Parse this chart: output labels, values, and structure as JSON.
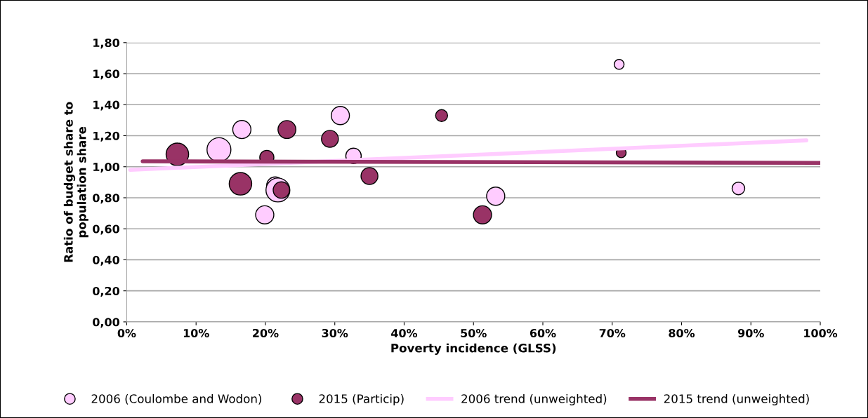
{
  "chart_data": {
    "type": "bubble",
    "xlabel": "Poverty incidence (GLSS)",
    "ylabel": "Ratio of budget share to\npopulation share",
    "xlim": [
      0,
      100
    ],
    "xticks": [
      {
        "value": 0,
        "label": "0%"
      },
      {
        "value": 10,
        "label": "10%"
      },
      {
        "value": 20,
        "label": "20%"
      },
      {
        "value": 30,
        "label": "30%"
      },
      {
        "value": 40,
        "label": "40%"
      },
      {
        "value": 50,
        "label": "50%"
      },
      {
        "value": 60,
        "label": "60%"
      },
      {
        "value": 70,
        "label": "70%"
      },
      {
        "value": 80,
        "label": "80%"
      },
      {
        "value": 90,
        "label": "90%"
      },
      {
        "value": 100,
        "label": "100%"
      }
    ],
    "ylim": [
      0,
      1.8
    ],
    "yticks": [
      {
        "value": 0,
        "label": "0,00"
      },
      {
        "value": 0.2,
        "label": "0,20"
      },
      {
        "value": 0.4,
        "label": "0,40"
      },
      {
        "value": 0.6,
        "label": "0,60"
      },
      {
        "value": 0.8,
        "label": "0,80"
      },
      {
        "value": 1.0,
        "label": "1,00"
      },
      {
        "value": 1.2,
        "label": "1,20"
      },
      {
        "value": 1.4,
        "label": "1,40"
      },
      {
        "value": 1.6,
        "label": "1,60"
      },
      {
        "value": 1.8,
        "label": "1,80"
      }
    ],
    "grid": "y",
    "legend": "bottom",
    "series": [
      {
        "name": "2006 (Coulombe and Wodon)",
        "color": "#ffccff",
        "x": [
          13.3,
          16.6,
          19.9,
          21.4,
          21.8,
          30.8,
          32.7,
          53.2,
          71.0,
          88.2
        ],
        "values": [
          1.11,
          1.24,
          0.69,
          0.88,
          0.85,
          1.33,
          1.07,
          0.81,
          1.66,
          0.86
        ],
        "sizes": [
          1,
          0.58,
          0.58,
          0.5,
          1,
          0.58,
          0.42,
          0.58,
          0.17,
          0.28
        ]
      },
      {
        "name": "2015 (Particip)",
        "color": "#993366",
        "x": [
          7.3,
          16.4,
          20.2,
          22.3,
          23.1,
          29.3,
          35.0,
          45.4,
          51.3,
          71.3
        ],
        "values": [
          1.08,
          0.89,
          1.06,
          0.85,
          1.24,
          1.18,
          0.94,
          1.33,
          0.69,
          1.09
        ],
        "sizes": [
          0.89,
          0.89,
          0.35,
          0.47,
          0.56,
          0.5,
          0.5,
          0.25,
          0.58,
          0.17
        ]
      },
      {
        "name": "2006 trend (unweighted)",
        "type": "line",
        "color": "#ffccff",
        "x": [
          0.5,
          98.0
        ],
        "values": [
          0.98,
          1.17
        ]
      },
      {
        "name": "2015 trend (unweighted)",
        "type": "line",
        "color": "#993366",
        "x": [
          2.3,
          100
        ],
        "values": [
          1.035,
          1.025
        ]
      }
    ]
  }
}
